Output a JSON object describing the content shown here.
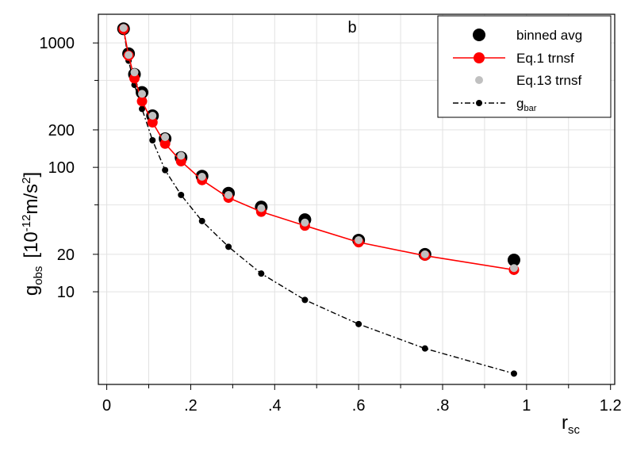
{
  "chart_data": {
    "type": "scatter",
    "panel_label": "b",
    "xlabel": {
      "main": "r",
      "sub": "sc"
    },
    "ylabel": {
      "main": "g",
      "sub": "obs",
      "units_pre": "[10",
      "units_exp": "-12",
      "units_mid": "m/s",
      "units_exp2": "2",
      "units_post": "]"
    },
    "xlim": [
      -0.02,
      1.21
    ],
    "ylim_log": [
      1.8,
      1700
    ],
    "scale_y": "log",
    "grid": true,
    "legend_position": "top-right",
    "x_ticks": [
      {
        "value": 0,
        "label": "0"
      },
      {
        "value": 0.2,
        "label": ".2"
      },
      {
        "value": 0.4,
        "label": ".4"
      },
      {
        "value": 0.6,
        "label": ".6"
      },
      {
        "value": 0.8,
        "label": ".8"
      },
      {
        "value": 1.0,
        "label": "1"
      },
      {
        "value": 1.2,
        "label": "1.2"
      }
    ],
    "x_minor_ticks": [
      0.1,
      0.3,
      0.5,
      0.7,
      0.9,
      1.1
    ],
    "y_ticks": [
      {
        "value": 10,
        "label": "10"
      },
      {
        "value": 20,
        "label": "20"
      },
      {
        "value": 100,
        "label": "100"
      },
      {
        "value": 200,
        "label": "200"
      },
      {
        "value": 1000,
        "label": "1000"
      }
    ],
    "y_minor_ticks": [
      50,
      500
    ],
    "series": [
      {
        "name": "binned avg",
        "style": "marker",
        "color": "#000000",
        "x": [
          0.04,
          0.052,
          0.066,
          0.084,
          0.109,
          0.139,
          0.177,
          0.227,
          0.29,
          0.368,
          0.472,
          0.6,
          0.758,
          0.97
        ],
        "y": [
          1300,
          820,
          560,
          400,
          260,
          170,
          120,
          85,
          62,
          48,
          38,
          26,
          20,
          18
        ]
      },
      {
        "name": "Eq.1 trnsf",
        "style": "line+marker",
        "color": "#ff0000",
        "x": [
          0.04,
          0.052,
          0.066,
          0.084,
          0.109,
          0.139,
          0.177,
          0.227,
          0.29,
          0.368,
          0.472,
          0.6,
          0.758,
          0.97
        ],
        "y": [
          1290,
          790,
          520,
          340,
          230,
          155,
          112,
          79,
          57,
          44,
          34,
          25,
          19.5,
          15
        ]
      },
      {
        "name": "Eq.13 trnsf",
        "style": "marker",
        "color": "#c0c0c0",
        "x": [
          0.04,
          0.052,
          0.066,
          0.084,
          0.109,
          0.139,
          0.177,
          0.227,
          0.29,
          0.368,
          0.472,
          0.6,
          0.758,
          0.97
        ],
        "y": [
          1320,
          800,
          580,
          390,
          260,
          175,
          124,
          84,
          60,
          47,
          36,
          26,
          20,
          15.5
        ]
      },
      {
        "name": "g",
        "name_sub": "bar",
        "style": "dashdot+marker",
        "color": "#000000",
        "x": [
          0.04,
          0.052,
          0.066,
          0.084,
          0.109,
          0.139,
          0.177,
          0.227,
          0.29,
          0.368,
          0.472,
          0.6,
          0.758,
          0.97
        ],
        "y": [
          1280,
          720,
          460,
          295,
          165,
          95,
          60,
          37,
          23,
          14,
          8.6,
          5.5,
          3.5,
          2.2
        ]
      }
    ]
  }
}
